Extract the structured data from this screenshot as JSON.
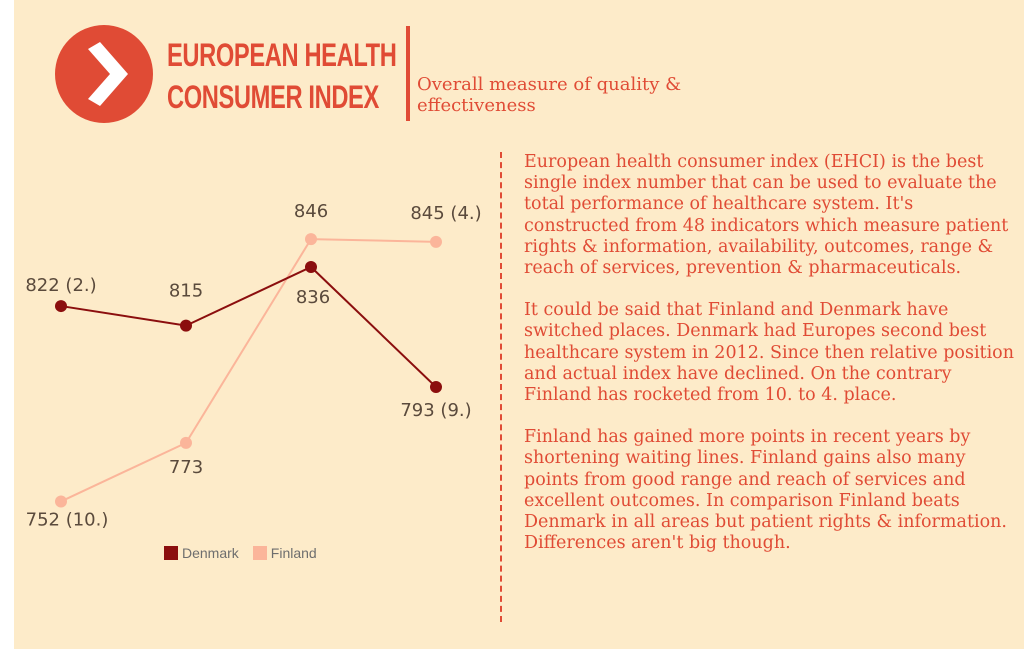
{
  "header": {
    "title_line1": "EUROPEAN HEALTH",
    "title_line2": "CONSUMER INDEX",
    "subtitle": "Overall measure of quality & effectiveness"
  },
  "logo": {
    "icon": "chevron-right-icon",
    "color": "#e04b35"
  },
  "paragraphs": [
    "European health consumer index (EHCI) is the best single index number that can be used to evaluate the total performance of healthcare system. It's constructed from 48 indicators which measure patient rights & information, availability, outcomes, range & reach of services, prevention & pharmaceuticals.",
    "It could be said that Finland and Denmark have switched places. Denmark had Europes second best healthcare system in 2012. Since then relative position and actual index have declined. On the contrary Finland has rocketed from 10. to 4. place.",
    "Finland has gained more points in recent years by shortening waiting lines. Finland gains also many points from good range and reach of services and excellent outcomes. In comparison Finland beats Denmark in all areas but patient rights & information. Differences aren't big though."
  ],
  "chart_data": {
    "type": "line",
    "categories": [
      "",
      "",
      "",
      ""
    ],
    "series": [
      {
        "name": "Denmark",
        "color": "#8b0e0e",
        "values": [
          822,
          815,
          836,
          793
        ],
        "labels": [
          "822 (2.)",
          "815",
          "836",
          "793 (9.)"
        ]
      },
      {
        "name": "Finland",
        "color": "#fbb59a",
        "values": [
          752,
          773,
          846,
          845
        ],
        "labels": [
          "752 (10.)",
          "773",
          "846",
          "845 (4.)"
        ]
      }
    ],
    "ylim": [
      745,
      860
    ],
    "grid": false,
    "legend": "bottom"
  }
}
